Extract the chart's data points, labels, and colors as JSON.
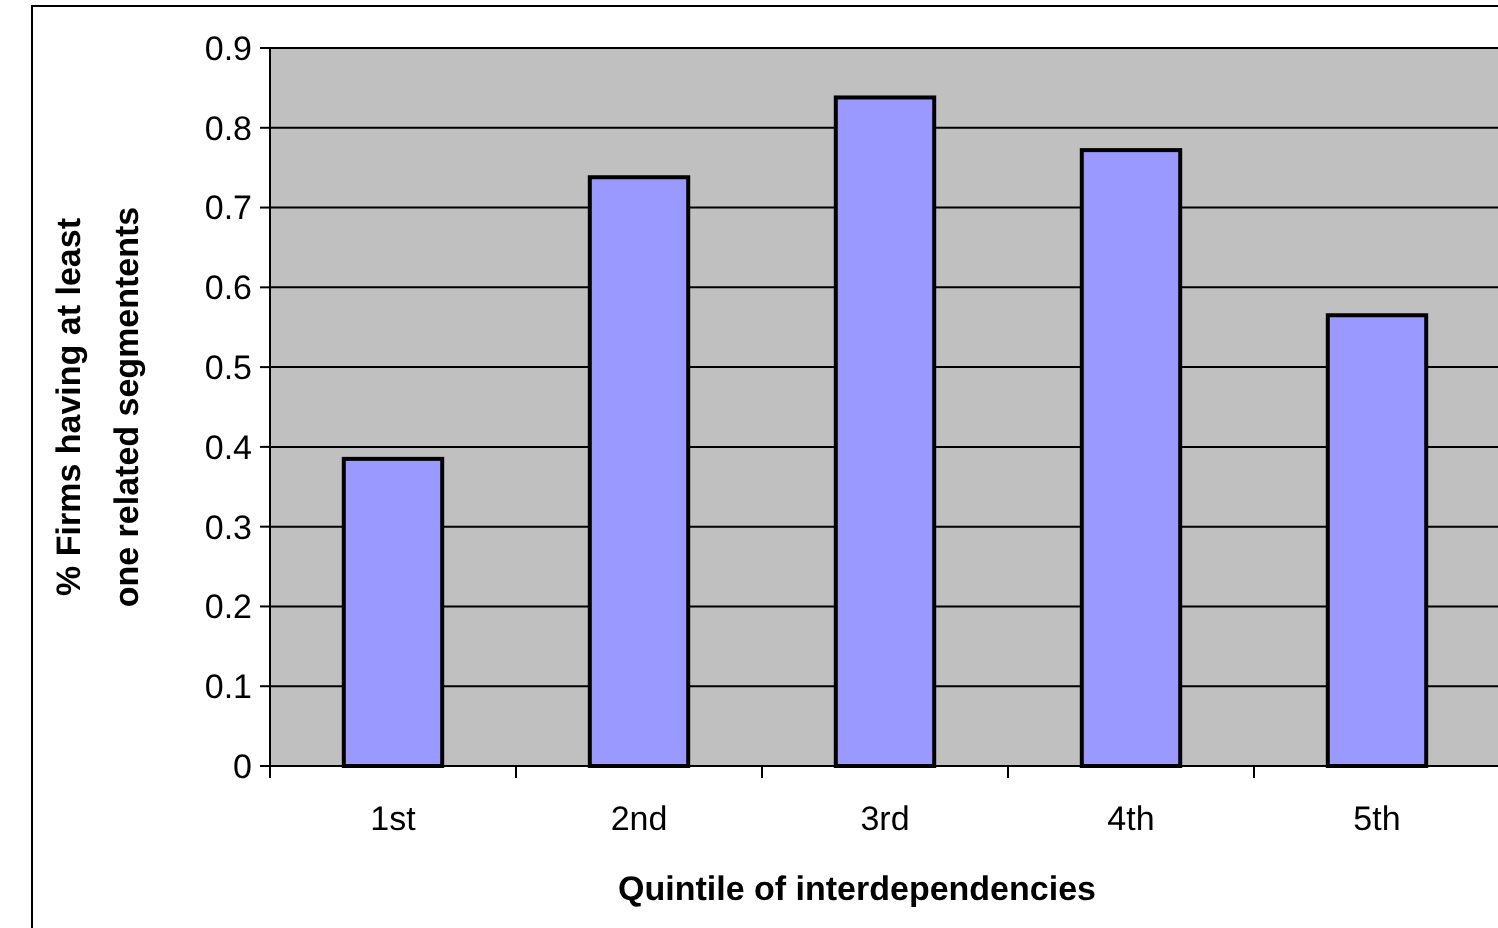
{
  "chart_data": {
    "type": "bar",
    "xlabel": "Quintile of interdependencies",
    "ylabel": "% Firms having at least one related segmentents",
    "categories": [
      "1st",
      "2nd",
      "3rd",
      "4th",
      "5th"
    ],
    "values": [
      0.385,
      0.738,
      0.838,
      0.772,
      0.565
    ],
    "color": "#9999ff",
    "ylim": [
      0,
      0.9
    ],
    "yticks": [
      0,
      0.1,
      0.2,
      0.3,
      0.4,
      0.5,
      0.6,
      0.7,
      0.8,
      0.9
    ],
    "grid": "y"
  }
}
